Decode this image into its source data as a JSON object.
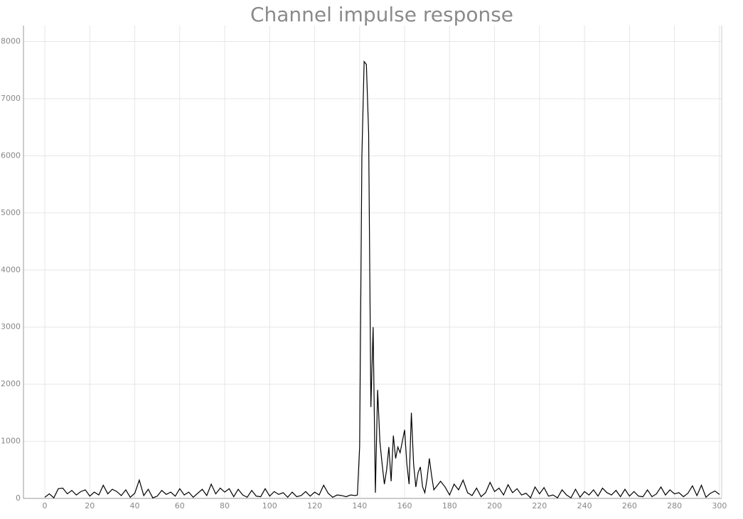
{
  "chart_data": {
    "type": "line",
    "title": "Channel impulse response",
    "color": "#000000",
    "grid": true,
    "xlim": [
      -9.5,
      301
    ],
    "ylim": [
      0,
      8280
    ],
    "xticks": [
      0,
      20,
      40,
      60,
      80,
      100,
      120,
      140,
      160,
      180,
      200,
      220,
      240,
      260,
      280,
      300
    ],
    "yticks": [
      0,
      1000,
      2000,
      3000,
      4000,
      5000,
      6000,
      7000,
      8000
    ],
    "x": [
      0,
      2,
      4,
      6,
      8,
      10,
      12,
      14,
      16,
      18,
      20,
      22,
      24,
      26,
      28,
      30,
      32,
      34,
      36,
      38,
      40,
      42,
      44,
      46,
      48,
      50,
      52,
      54,
      56,
      58,
      60,
      62,
      64,
      66,
      68,
      70,
      72,
      74,
      76,
      78,
      80,
      82,
      84,
      86,
      88,
      90,
      92,
      94,
      96,
      98,
      100,
      102,
      104,
      106,
      108,
      110,
      112,
      114,
      116,
      118,
      120,
      122,
      124,
      126,
      128,
      130,
      132,
      134,
      136,
      138,
      139,
      140,
      141,
      142,
      143,
      144,
      145,
      146,
      147,
      148,
      149,
      150,
      151,
      152,
      153,
      154,
      155,
      156,
      157,
      158,
      159,
      160,
      161,
      162,
      163,
      164,
      165,
      166,
      167,
      168,
      169,
      170,
      171,
      172,
      173,
      174,
      176,
      178,
      180,
      182,
      184,
      186,
      188,
      190,
      192,
      194,
      196,
      198,
      200,
      202,
      204,
      206,
      208,
      210,
      212,
      214,
      216,
      218,
      220,
      222,
      224,
      226,
      228,
      230,
      232,
      234,
      236,
      238,
      240,
      242,
      244,
      246,
      248,
      250,
      252,
      254,
      256,
      258,
      260,
      262,
      264,
      266,
      268,
      270,
      272,
      274,
      276,
      278,
      280,
      282,
      284,
      286,
      288,
      290,
      292,
      294,
      296,
      298,
      300
    ],
    "values": [
      20,
      80,
      10,
      170,
      180,
      80,
      140,
      60,
      120,
      150,
      40,
      110,
      60,
      230,
      80,
      160,
      120,
      50,
      150,
      20,
      90,
      320,
      50,
      160,
      10,
      40,
      140,
      70,
      110,
      40,
      170,
      60,
      110,
      20,
      90,
      160,
      50,
      250,
      80,
      180,
      110,
      170,
      30,
      160,
      60,
      20,
      140,
      40,
      30,
      170,
      40,
      120,
      70,
      100,
      20,
      110,
      30,
      50,
      120,
      40,
      110,
      60,
      230,
      90,
      20,
      60,
      50,
      30,
      60,
      50,
      60,
      900,
      6000,
      7650,
      7600,
      6400,
      1600,
      3000,
      100,
      1900,
      1000,
      600,
      250,
      500,
      900,
      300,
      1100,
      700,
      900,
      800,
      1000,
      1200,
      600,
      250,
      1500,
      600,
      200,
      450,
      550,
      200,
      100,
      350,
      700,
      400,
      150,
      200,
      300,
      200,
      60,
      250,
      150,
      320,
      100,
      50,
      180,
      30,
      100,
      280,
      120,
      180,
      60,
      240,
      100,
      170,
      60,
      90,
      10,
      200,
      80,
      190,
      40,
      60,
      10,
      150,
      60,
      10,
      160,
      20,
      120,
      60,
      150,
      40,
      180,
      100,
      60,
      140,
      30,
      160,
      40,
      120,
      40,
      30,
      150,
      30,
      80,
      200,
      60,
      150,
      80,
      100,
      30,
      90,
      220,
      50,
      230,
      20,
      90,
      130,
      70
    ]
  }
}
